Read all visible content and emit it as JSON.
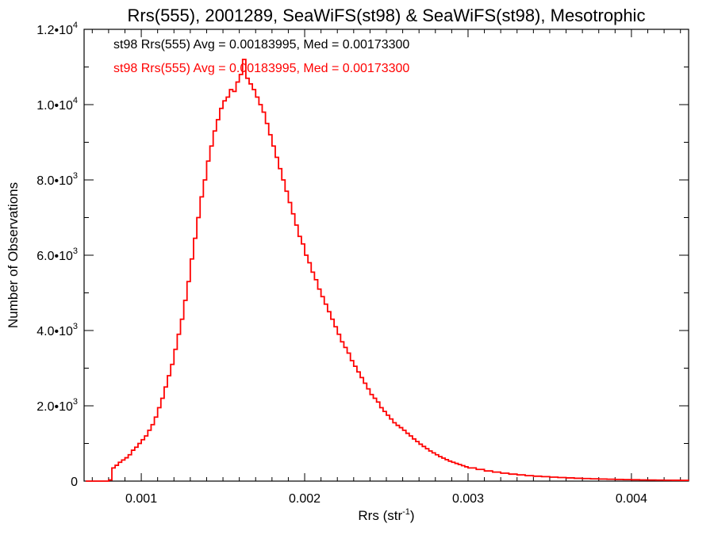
{
  "chart_data": {
    "type": "histogram",
    "title": "Rrs(555), 2001289, SeaWiFS(st98) & SeaWiFS(st98), Mesotrophic",
    "xlabel_main": "Rrs (str",
    "xlabel_sup": "-1",
    "xlabel_end": ")",
    "ylabel": "Number of Observations",
    "xlim": [
      0.00065,
      0.00435
    ],
    "ylim": [
      0,
      12000
    ],
    "x_ticks": [
      {
        "value": 0.001,
        "label": "0.001"
      },
      {
        "value": 0.002,
        "label": "0.002"
      },
      {
        "value": 0.003,
        "label": "0.003"
      },
      {
        "value": 0.004,
        "label": "0.004"
      }
    ],
    "y_ticks": [
      {
        "value": 0,
        "mant": "0",
        "exp": ""
      },
      {
        "value": 2000,
        "mant": "2.0•10",
        "exp": "3"
      },
      {
        "value": 4000,
        "mant": "4.0•10",
        "exp": "3"
      },
      {
        "value": 6000,
        "mant": "6.0•10",
        "exp": "3"
      },
      {
        "value": 8000,
        "mant": "8.0•10",
        "exp": "3"
      },
      {
        "value": 10000,
        "mant": "1.0•10",
        "exp": "4"
      },
      {
        "value": 12000,
        "mant": "1.2•10",
        "exp": "4"
      }
    ],
    "legend": [
      {
        "text": "st98 Rrs(555) Avg = 0.00183995, Med = 0.00173300",
        "color": "#000000"
      },
      {
        "text": "st98 Rrs(555) Avg = 0.00183995, Med = 0.00173300",
        "color": "#ff0000"
      }
    ],
    "series": [
      {
        "color": "#ff0000",
        "points": [
          [
            0.00066,
            0
          ],
          [
            0.0008,
            30
          ],
          [
            0.00082,
            350
          ],
          [
            0.00084,
            420
          ],
          [
            0.00086,
            500
          ],
          [
            0.00088,
            560
          ],
          [
            0.0009,
            620
          ],
          [
            0.00092,
            700
          ],
          [
            0.00094,
            820
          ],
          [
            0.00096,
            900
          ],
          [
            0.00098,
            1000
          ],
          [
            0.001,
            1100
          ],
          [
            0.00102,
            1200
          ],
          [
            0.00104,
            1350
          ],
          [
            0.00106,
            1500
          ],
          [
            0.00108,
            1700
          ],
          [
            0.0011,
            1950
          ],
          [
            0.00112,
            2200
          ],
          [
            0.00114,
            2500
          ],
          [
            0.00116,
            2800
          ],
          [
            0.00118,
            3100
          ],
          [
            0.0012,
            3500
          ],
          [
            0.00122,
            3900
          ],
          [
            0.00124,
            4300
          ],
          [
            0.00126,
            4800
          ],
          [
            0.00128,
            5300
          ],
          [
            0.0013,
            5900
          ],
          [
            0.00132,
            6450
          ],
          [
            0.00134,
            7000
          ],
          [
            0.00136,
            7550
          ],
          [
            0.00138,
            8000
          ],
          [
            0.0014,
            8500
          ],
          [
            0.00142,
            8900
          ],
          [
            0.00144,
            9300
          ],
          [
            0.00146,
            9600
          ],
          [
            0.00148,
            9900
          ],
          [
            0.0015,
            10100
          ],
          [
            0.00152,
            10200
          ],
          [
            0.00154,
            10400
          ],
          [
            0.00156,
            10350
          ],
          [
            0.00158,
            10600
          ],
          [
            0.0016,
            10800
          ],
          [
            0.00162,
            11200
          ],
          [
            0.00164,
            10700
          ],
          [
            0.00166,
            10550
          ],
          [
            0.00168,
            10400
          ],
          [
            0.0017,
            10200
          ],
          [
            0.00172,
            10000
          ],
          [
            0.00174,
            9800
          ],
          [
            0.00176,
            9500
          ],
          [
            0.00178,
            9200
          ],
          [
            0.0018,
            8900
          ],
          [
            0.00182,
            8600
          ],
          [
            0.00184,
            8300
          ],
          [
            0.00186,
            8000
          ],
          [
            0.00188,
            7700
          ],
          [
            0.0019,
            7400
          ],
          [
            0.00192,
            7100
          ],
          [
            0.00194,
            6800
          ],
          [
            0.00196,
            6500
          ],
          [
            0.00198,
            6300
          ],
          [
            0.002,
            6000
          ],
          [
            0.00202,
            5800
          ],
          [
            0.00204,
            5550
          ],
          [
            0.00206,
            5350
          ],
          [
            0.00208,
            5100
          ],
          [
            0.0021,
            4900
          ],
          [
            0.00212,
            4700
          ],
          [
            0.00214,
            4500
          ],
          [
            0.00216,
            4300
          ],
          [
            0.00218,
            4100
          ],
          [
            0.0022,
            3900
          ],
          [
            0.00222,
            3700
          ],
          [
            0.00224,
            3550
          ],
          [
            0.00226,
            3400
          ],
          [
            0.00228,
            3200
          ],
          [
            0.0023,
            3050
          ],
          [
            0.00232,
            2900
          ],
          [
            0.00234,
            2750
          ],
          [
            0.00236,
            2600
          ],
          [
            0.00238,
            2450
          ],
          [
            0.0024,
            2300
          ],
          [
            0.00242,
            2200
          ],
          [
            0.00244,
            2100
          ],
          [
            0.00246,
            1950
          ],
          [
            0.00248,
            1850
          ],
          [
            0.0025,
            1750
          ],
          [
            0.00252,
            1650
          ],
          [
            0.00254,
            1550
          ],
          [
            0.00256,
            1480
          ],
          [
            0.00258,
            1420
          ],
          [
            0.0026,
            1350
          ],
          [
            0.00262,
            1270
          ],
          [
            0.00264,
            1200
          ],
          [
            0.00266,
            1120
          ],
          [
            0.00268,
            1050
          ],
          [
            0.0027,
            980
          ],
          [
            0.00272,
            920
          ],
          [
            0.00274,
            860
          ],
          [
            0.00276,
            800
          ],
          [
            0.00278,
            750
          ],
          [
            0.0028,
            700
          ],
          [
            0.00282,
            650
          ],
          [
            0.00284,
            610
          ],
          [
            0.00286,
            570
          ],
          [
            0.00288,
            530
          ],
          [
            0.0029,
            500
          ],
          [
            0.00292,
            470
          ],
          [
            0.00294,
            440
          ],
          [
            0.00296,
            410
          ],
          [
            0.00298,
            380
          ],
          [
            0.003,
            350
          ],
          [
            0.00305,
            310
          ],
          [
            0.0031,
            270
          ],
          [
            0.00315,
            240
          ],
          [
            0.0032,
            210
          ],
          [
            0.00325,
            185
          ],
          [
            0.0033,
            165
          ],
          [
            0.00335,
            145
          ],
          [
            0.0034,
            130
          ],
          [
            0.00345,
            118
          ],
          [
            0.0035,
            105
          ],
          [
            0.00355,
            95
          ],
          [
            0.0036,
            85
          ],
          [
            0.00365,
            75
          ],
          [
            0.0037,
            68
          ],
          [
            0.00375,
            60
          ],
          [
            0.0038,
            55
          ],
          [
            0.00385,
            50
          ],
          [
            0.0039,
            44
          ],
          [
            0.00395,
            40
          ],
          [
            0.004,
            36
          ],
          [
            0.00405,
            32
          ],
          [
            0.0041,
            29
          ],
          [
            0.00415,
            26
          ],
          [
            0.0042,
            24
          ],
          [
            0.00425,
            22
          ],
          [
            0.0043,
            20
          ],
          [
            0.00435,
            18
          ]
        ]
      }
    ]
  }
}
